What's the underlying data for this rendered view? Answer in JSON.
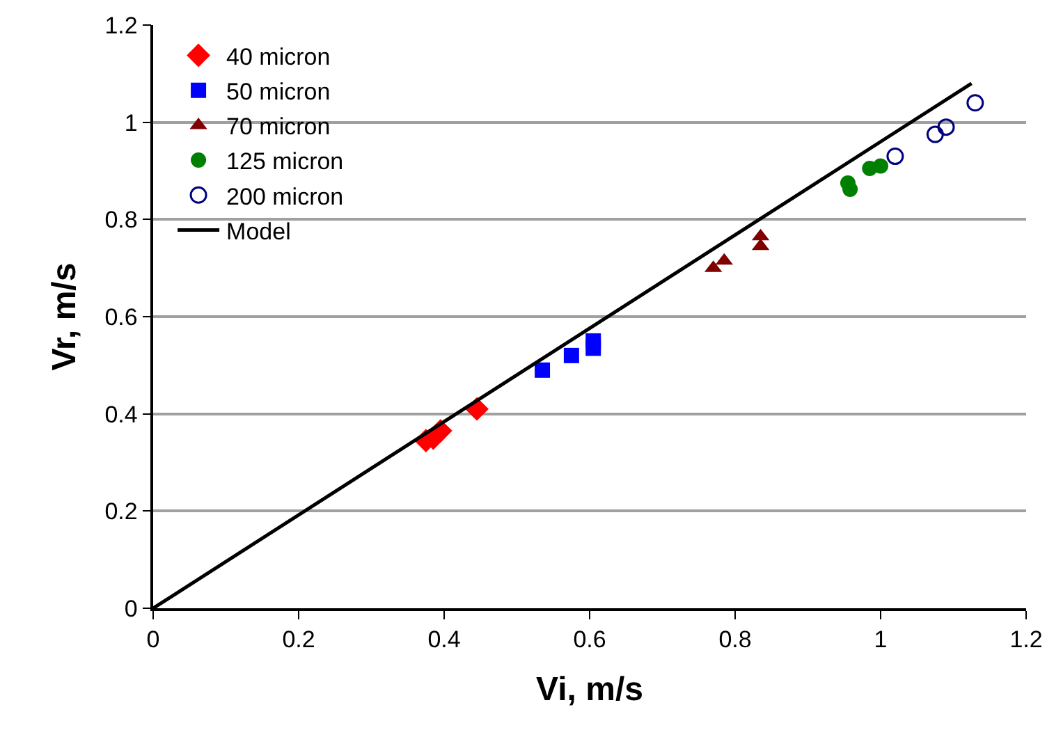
{
  "chart_data": {
    "type": "scatter",
    "xlabel": "Vi, m/s",
    "ylabel": "Vr, m/s",
    "xlim": [
      0,
      1.2
    ],
    "ylim": [
      0,
      1.2
    ],
    "xticks": [
      0,
      0.2,
      0.4,
      0.6,
      0.8,
      1,
      1.2
    ],
    "yticks": [
      0,
      0.2,
      0.4,
      0.6,
      0.8,
      1,
      1.2
    ],
    "grid": "y",
    "legend": "top left",
    "series": [
      {
        "name": "40 micron",
        "color": "#ff0000",
        "marker": "diamond",
        "x": [
          0.375,
          0.385,
          0.395,
          0.445
        ],
        "values": [
          0.345,
          0.35,
          0.365,
          0.41
        ]
      },
      {
        "name": "50 micron",
        "color": "#0000ff",
        "marker": "square",
        "x": [
          0.535,
          0.575,
          0.605,
          0.605
        ],
        "values": [
          0.49,
          0.52,
          0.55,
          0.535
        ]
      },
      {
        "name": "70 micron",
        "color": "#800000",
        "marker": "triangle",
        "x": [
          0.77,
          0.785,
          0.835,
          0.835
        ],
        "values": [
          0.7,
          0.715,
          0.745,
          0.765
        ]
      },
      {
        "name": "125 micron",
        "color": "#008000",
        "marker": "circle",
        "x": [
          0.955,
          0.958,
          0.985,
          1.0
        ],
        "values": [
          0.875,
          0.862,
          0.905,
          0.91
        ]
      },
      {
        "name": "200 micron",
        "color": "#000080",
        "marker": "circle-open",
        "x": [
          1.02,
          1.075,
          1.09,
          1.13
        ],
        "values": [
          0.93,
          0.975,
          0.99,
          1.04
        ]
      },
      {
        "name": "Model",
        "type": "line",
        "color": "#000000",
        "marker": "none",
        "line_style": "solid",
        "x": [
          0,
          1.125
        ],
        "values": [
          0,
          1.08
        ]
      }
    ]
  }
}
